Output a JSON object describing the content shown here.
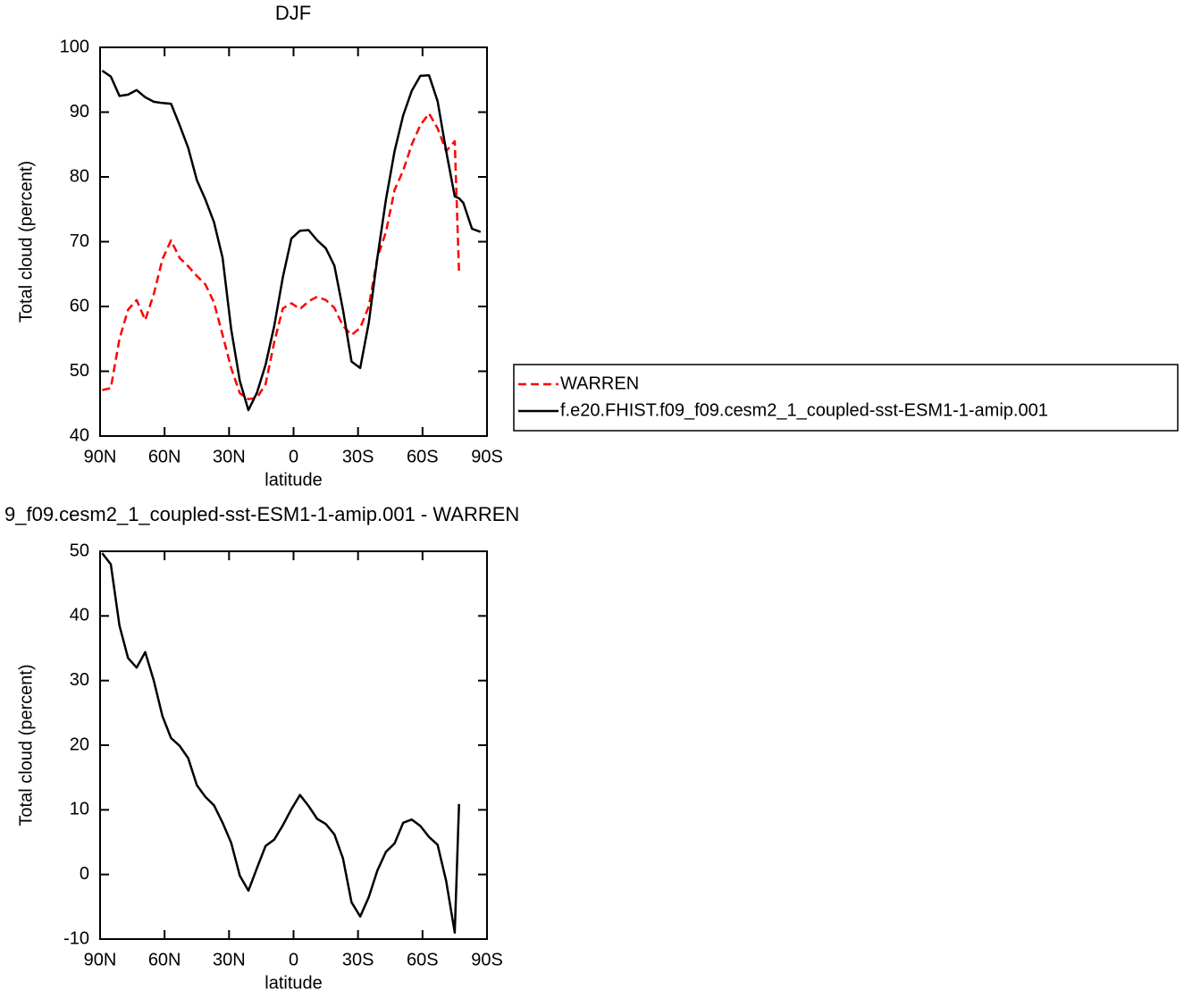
{
  "chart_data": [
    {
      "type": "line",
      "title": "DJF",
      "xlabel": "latitude",
      "ylabel": "Total cloud (percent)",
      "x": [
        89,
        85,
        81,
        77,
        73,
        69,
        65,
        61,
        57,
        53,
        49,
        45,
        41,
        37,
        33,
        29,
        25,
        21,
        17,
        13,
        9,
        5,
        1,
        -3,
        -7,
        -11,
        -15,
        -19,
        -23,
        -27,
        -31,
        -35,
        -39,
        -43,
        -47,
        -51,
        -55,
        -59,
        -63,
        -67,
        -71,
        -75,
        -77,
        -79,
        -83,
        -87
      ],
      "xlim": [
        90,
        -90
      ],
      "xticks": [
        {
          "value": 90,
          "label": "90N"
        },
        {
          "value": 60,
          "label": "60N"
        },
        {
          "value": 30,
          "label": "30N"
        },
        0,
        {
          "value": -30,
          "label": "30S"
        },
        {
          "value": -60,
          "label": "60S"
        },
        {
          "value": -90,
          "label": "90S"
        }
      ],
      "ylim": [
        40,
        100
      ],
      "yticks": [
        40,
        50,
        60,
        70,
        80,
        90,
        100
      ],
      "legend": "right",
      "series": [
        {
          "name": "WARREN",
          "color": "#ff0000",
          "linestyle": "dashed",
          "values": [
            47.1,
            47.4,
            55,
            59.5,
            61,
            57.9,
            61.9,
            67.3,
            70.2,
            67.5,
            66.2,
            64.7,
            63.4,
            60.6,
            55.6,
            50.5,
            46.6,
            45.7,
            45.9,
            48,
            54.5,
            59.7,
            60.5,
            59.6,
            60.8,
            61.5,
            61,
            59.8,
            57,
            55.6,
            56.7,
            60,
            67.5,
            71.5,
            78,
            81,
            85,
            88,
            89.8,
            87.5,
            84,
            85.5,
            65.2,
            null,
            null,
            null
          ]
        },
        {
          "name": "f.e20.FHIST.f09_f09.cesm2_1_coupled-sst-ESM1-1-amip.001",
          "color": "#000000",
          "linestyle": "solid",
          "values": [
            96.4,
            95.5,
            92.5,
            92.7,
            93.4,
            92.3,
            91.6,
            91.4,
            91.3,
            88,
            84.5,
            79.5,
            76.5,
            73,
            67.5,
            56.5,
            48.5,
            44,
            46.7,
            51,
            57,
            64.5,
            70.5,
            71.7,
            71.8,
            70.2,
            69,
            66.3,
            59.5,
            51.5,
            50.5,
            57.5,
            67.5,
            76.5,
            84,
            89.5,
            93.3,
            95.6,
            95.7,
            91.7,
            84,
            77,
            76.7,
            76,
            72,
            71.5
          ]
        }
      ]
    },
    {
      "type": "line",
      "title": "9_f09.cesm2_1_coupled-sst-ESM1-1-amip.001 - WARREN",
      "xlabel": "latitude",
      "ylabel": "Total cloud (percent)",
      "x": [
        89,
        85,
        81,
        77,
        73,
        69,
        65,
        61,
        57,
        53,
        49,
        45,
        41,
        37,
        33,
        29,
        25,
        21,
        17,
        13,
        9,
        5,
        1,
        -3,
        -7,
        -11,
        -15,
        -19,
        -23,
        -27,
        -31,
        -35,
        -39,
        -43,
        -47,
        -51,
        -55,
        -59,
        -63,
        -67,
        -71,
        -75,
        -77
      ],
      "xlim": [
        90,
        -90
      ],
      "xticks": [
        {
          "value": 90,
          "label": "90N"
        },
        {
          "value": 60,
          "label": "60N"
        },
        {
          "value": 30,
          "label": "30N"
        },
        0,
        {
          "value": -30,
          "label": "30S"
        },
        {
          "value": -60,
          "label": "60S"
        },
        {
          "value": -90,
          "label": "90S"
        }
      ],
      "ylim": [
        -10,
        50
      ],
      "yticks": [
        -10,
        0,
        10,
        20,
        30,
        40,
        50
      ],
      "series": [
        {
          "color": "#000000",
          "linestyle": "solid",
          "values": [
            49.7,
            48,
            38.5,
            33.5,
            32,
            34.4,
            30,
            24.5,
            21.1,
            19.9,
            18,
            13.8,
            12,
            10.7,
            8,
            4.9,
            -0.2,
            -2.5,
            1,
            4.4,
            5.4,
            7.6,
            10.1,
            12.3,
            10.6,
            8.6,
            7.8,
            6.2,
            2.5,
            -4.3,
            -6.5,
            -3.5,
            0.6,
            3.5,
            4.8,
            8,
            8.5,
            7.5,
            5.8,
            4.6,
            -1,
            -9,
            10.9
          ]
        }
      ]
    }
  ]
}
